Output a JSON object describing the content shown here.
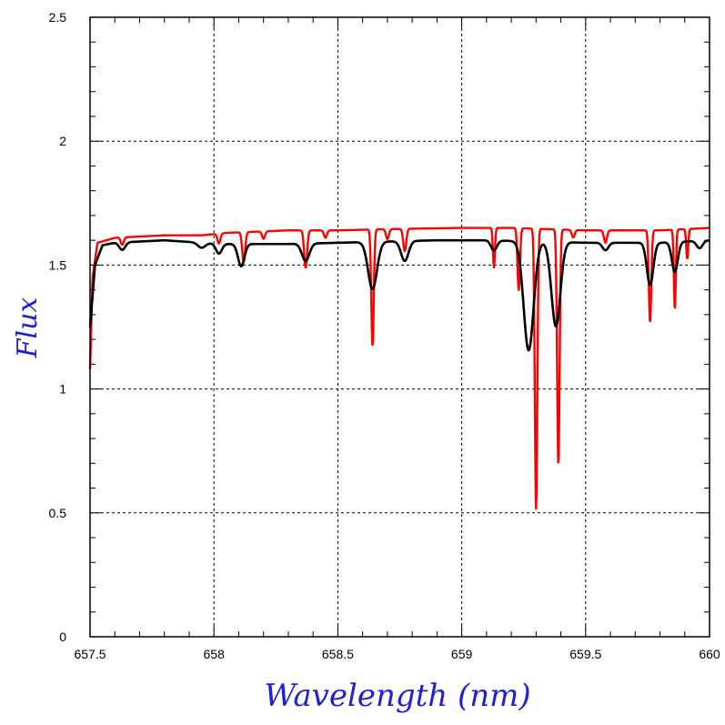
{
  "chart_data": {
    "type": "line",
    "title": "",
    "xlabel": "Wavelength (nm)",
    "ylabel": "Flux",
    "xlim": [
      657.5,
      660
    ],
    "ylim": [
      0,
      2.5
    ],
    "xticks": [
      657.5,
      658,
      658.5,
      659,
      659.5,
      660
    ],
    "xtick_labels": [
      "657.5",
      "658",
      "658.5",
      "659",
      "659.5",
      "660"
    ],
    "yticks": [
      0,
      0.5,
      1,
      1.5,
      2,
      2.5
    ],
    "ytick_labels": [
      "0",
      "0.5",
      "1",
      "1.5",
      "2",
      "2.5"
    ],
    "grid": true,
    "colors": {
      "axis_title": "#1f1fd6",
      "grid": "#000000"
    },
    "series": [
      {
        "name": "red",
        "color": "#ff0000",
        "continuum": [
          [
            657.5,
            1.08
          ],
          [
            657.51,
            1.45
          ],
          [
            657.53,
            1.59
          ],
          [
            657.6,
            1.61
          ],
          [
            657.8,
            1.62
          ],
          [
            657.95,
            1.62
          ],
          [
            658.05,
            1.63
          ],
          [
            658.3,
            1.64
          ],
          [
            658.5,
            1.64
          ],
          [
            658.7,
            1.645
          ],
          [
            659.0,
            1.65
          ],
          [
            659.2,
            1.65
          ],
          [
            659.5,
            1.64
          ],
          [
            659.8,
            1.64
          ],
          [
            660.0,
            1.65
          ]
        ],
        "lines": [
          [
            657.63,
            0.03,
            0.006
          ],
          [
            658.02,
            0.04,
            0.006
          ],
          [
            658.12,
            0.12,
            0.006
          ],
          [
            658.2,
            0.03,
            0.006
          ],
          [
            658.37,
            0.15,
            0.006
          ],
          [
            658.45,
            0.03,
            0.006
          ],
          [
            658.64,
            0.47,
            0.005
          ],
          [
            658.7,
            0.04,
            0.006
          ],
          [
            658.77,
            0.09,
            0.006
          ],
          [
            659.13,
            0.16,
            0.004
          ],
          [
            659.23,
            0.25,
            0.005
          ],
          [
            659.3,
            1.13,
            0.005
          ],
          [
            659.39,
            0.95,
            0.005
          ],
          [
            659.45,
            0.03,
            0.006
          ],
          [
            659.58,
            0.05,
            0.006
          ],
          [
            659.76,
            0.37,
            0.005
          ],
          [
            659.86,
            0.32,
            0.004
          ],
          [
            659.91,
            0.12,
            0.004
          ]
        ]
      },
      {
        "name": "black",
        "color": "#000000",
        "continuum": [
          [
            657.5,
            1.25
          ],
          [
            657.52,
            1.5
          ],
          [
            657.55,
            1.58
          ],
          [
            657.6,
            1.59
          ],
          [
            657.8,
            1.6
          ],
          [
            657.95,
            1.59
          ],
          [
            658.05,
            1.585
          ],
          [
            658.3,
            1.585
          ],
          [
            658.5,
            1.59
          ],
          [
            658.7,
            1.595
          ],
          [
            658.9,
            1.6
          ],
          [
            659.0,
            1.6
          ],
          [
            659.1,
            1.6
          ],
          [
            659.5,
            1.59
          ],
          [
            659.8,
            1.59
          ],
          [
            660.0,
            1.6
          ]
        ],
        "lines": [
          [
            657.63,
            0.03,
            0.012
          ],
          [
            657.95,
            0.02,
            0.015
          ],
          [
            658.02,
            0.04,
            0.012
          ],
          [
            658.11,
            0.09,
            0.013
          ],
          [
            658.37,
            0.07,
            0.015
          ],
          [
            658.64,
            0.19,
            0.018
          ],
          [
            658.77,
            0.08,
            0.015
          ],
          [
            659.13,
            0.04,
            0.012
          ],
          [
            659.27,
            0.44,
            0.02
          ],
          [
            659.38,
            0.34,
            0.018
          ],
          [
            659.58,
            0.03,
            0.012
          ],
          [
            659.76,
            0.17,
            0.013
          ],
          [
            659.86,
            0.12,
            0.012
          ],
          [
            659.96,
            0.03,
            0.012
          ]
        ]
      }
    ]
  }
}
